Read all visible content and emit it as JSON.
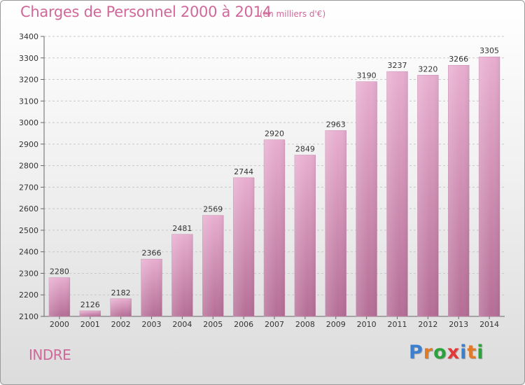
{
  "header": {
    "title": "Charges de Personnel 2000 à 2014",
    "subtitle": "(en milliers d'€)"
  },
  "region_label": "INDRE",
  "logo": {
    "text": "Proxiti",
    "colors": [
      "#3b7fd0",
      "#e07a28",
      "#2aa33a",
      "#e03a3a",
      "#3b7fd0",
      "#e07a28",
      "#2aa33a"
    ]
  },
  "colors": {
    "bar_top": "#e8aed0",
    "bar_bottom": "#b56e96",
    "accent": "#d0689a"
  },
  "chart_data": {
    "type": "bar",
    "categories": [
      "2000",
      "2001",
      "2002",
      "2003",
      "2004",
      "2005",
      "2006",
      "2007",
      "2008",
      "2009",
      "2010",
      "2011",
      "2012",
      "2013",
      "2014"
    ],
    "values": [
      2280,
      2126,
      2182,
      2366,
      2481,
      2569,
      2744,
      2920,
      2849,
      2963,
      3190,
      3237,
      3220,
      3266,
      3305
    ],
    "title": "Charges de Personnel 2000 à 2014",
    "subtitle": "(en milliers d'€)",
    "xlabel": "",
    "ylabel": "",
    "ylim": [
      2100,
      3400
    ],
    "yticks": [
      2100,
      2200,
      2300,
      2400,
      2500,
      2600,
      2700,
      2800,
      2900,
      3000,
      3100,
      3200,
      3300,
      3400
    ],
    "grid": true,
    "data_labels": true
  }
}
